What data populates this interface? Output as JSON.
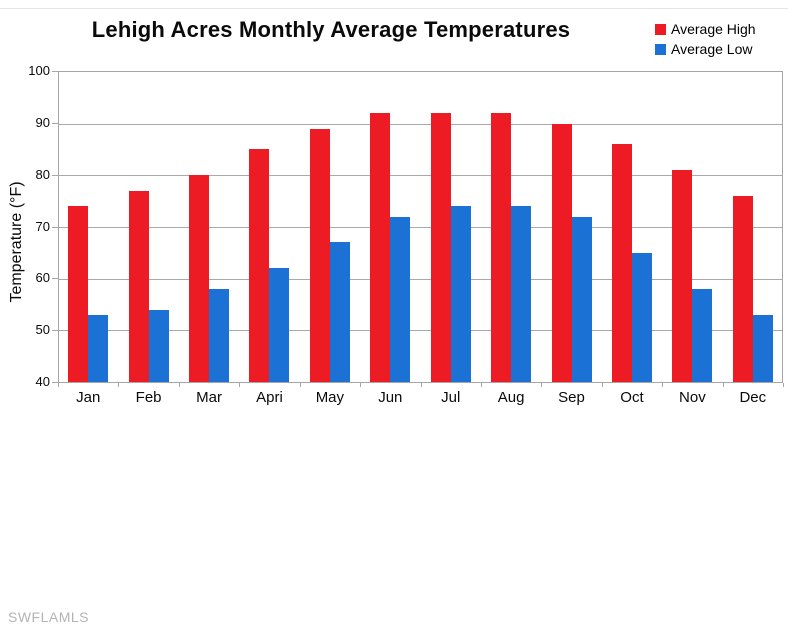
{
  "title": "Lehigh Acres Monthly Average Temperatures",
  "watermark": "SWFLAMLS",
  "legend": {
    "items": [
      {
        "label": "Average High",
        "color": "#ED1C24"
      },
      {
        "label": "Average Low",
        "color": "#1B72D4"
      }
    ]
  },
  "chart_data": {
    "type": "bar",
    "title": "Lehigh Acres Monthly Average Temperatures",
    "categories": [
      "Jan",
      "Feb",
      "Mar",
      "Apri",
      "May",
      "Jun",
      "Jul",
      "Aug",
      "Sep",
      "Oct",
      "Nov",
      "Dec"
    ],
    "series": [
      {
        "name": "Average High",
        "color": "#ED1C24",
        "values": [
          74,
          77,
          80,
          85,
          89,
          92,
          92,
          92,
          90,
          86,
          81,
          76
        ]
      },
      {
        "name": "Average Low",
        "color": "#1B72D4",
        "values": [
          53,
          54,
          58,
          62,
          67,
          72,
          74,
          74,
          72,
          65,
          58,
          53
        ]
      }
    ],
    "xlabel": "",
    "ylabel": "Temperature (°F)",
    "ylim": [
      40,
      100
    ],
    "ytick_step": 10,
    "grid": "horizontal",
    "gridline_color": "#a9a9a9",
    "legend_position": "top-right",
    "background_color": "#ffffff"
  }
}
